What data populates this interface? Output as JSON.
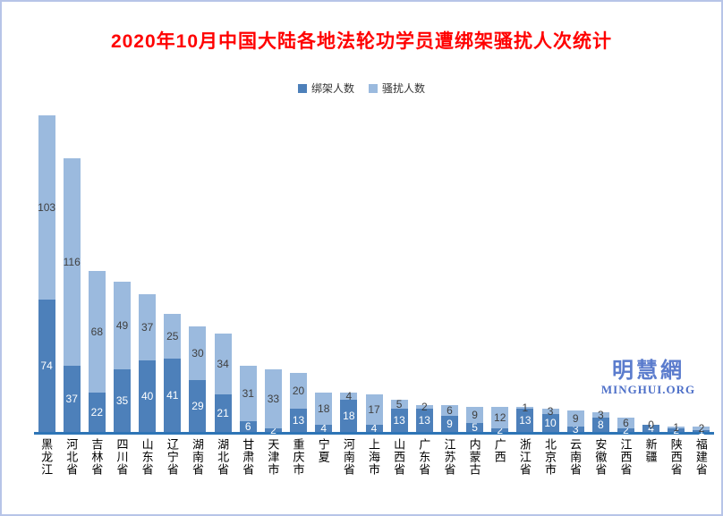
{
  "title": "2020年10月中国大陆各地法轮功学员遭绑架骚扰人次统计",
  "watermark": {
    "line1": "明慧網",
    "line2": "MINGHUI.ORG"
  },
  "colors": {
    "title": "#ff0000",
    "kidnap_bar": "#4d80ba",
    "harass_bar": "#9bbade",
    "kidnap_label": "#ffffff",
    "harass_label": "#404040",
    "axis_line": "#2e75b6",
    "border": "#b7c4e8",
    "watermark": "#5b7ccd"
  },
  "chart_data": {
    "type": "bar",
    "stacked": true,
    "title": "2020年10月中国大陆各地法轮功学员遭绑架骚扰人次统计",
    "legend_position": "top",
    "grid": false,
    "ylim": [
      0,
      180
    ],
    "categories": [
      "黑龙江",
      "河北省",
      "吉林省",
      "四川省",
      "山东省",
      "辽宁省",
      "湖南省",
      "湖北省",
      "甘肃省",
      "天津市",
      "重庆市",
      "宁夏",
      "河南省",
      "上海市",
      "山西省",
      "广东省",
      "江苏省",
      "内蒙古",
      "广西",
      "浙江省",
      "北京市",
      "云南省",
      "安徽省",
      "江西省",
      "新疆",
      "陕西省",
      "福建省"
    ],
    "series": [
      {
        "name": "绑架人数",
        "color": "#4d80ba",
        "label_color": "#ffffff",
        "values": [
          74,
          37,
          22,
          35,
          40,
          41,
          29,
          21,
          6,
          2,
          13,
          4,
          18,
          4,
          13,
          13,
          9,
          5,
          2,
          13,
          10,
          3,
          8,
          2,
          4,
          2,
          1
        ]
      },
      {
        "name": "骚扰人数",
        "color": "#9bbade",
        "label_color": "#404040",
        "values": [
          103,
          116,
          68,
          49,
          37,
          25,
          30,
          34,
          31,
          33,
          20,
          18,
          4,
          17,
          5,
          2,
          6,
          9,
          12,
          1,
          3,
          9,
          3,
          6,
          0,
          1,
          2
        ]
      }
    ]
  }
}
